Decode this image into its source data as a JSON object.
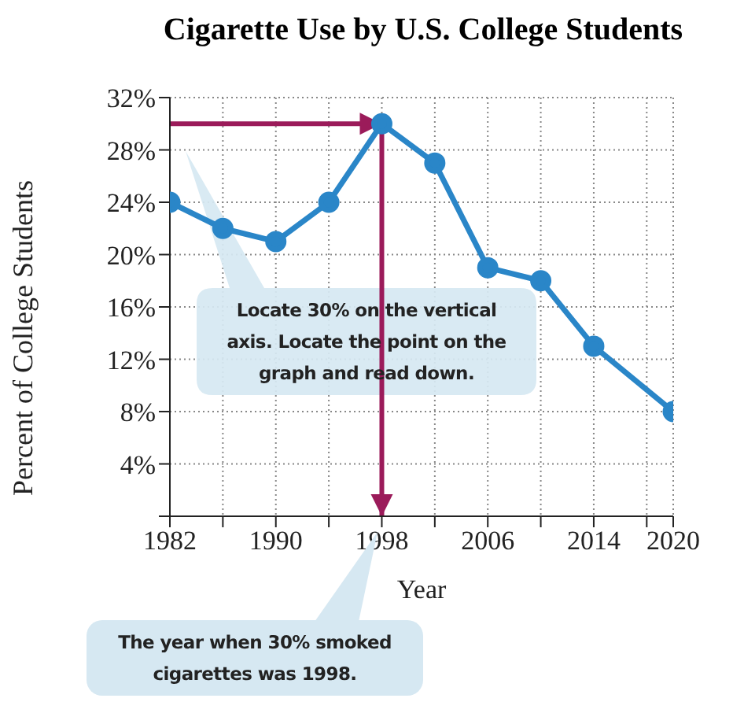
{
  "chart_data": {
    "type": "line",
    "title": "Cigarette Use by U.S. College Students",
    "xlabel": "Year",
    "ylabel": "Percent of College Students",
    "x": [
      1982,
      1986,
      1990,
      1994,
      1998,
      2002,
      2006,
      2010,
      2014,
      2020
    ],
    "series": [
      {
        "color": "#2a86c8",
        "values": [
          24,
          22,
          21,
          24,
          30,
          27,
          19,
          18,
          13,
          8
        ]
      }
    ],
    "xlim": [
      1982,
      2020
    ],
    "xticks": [
      1982,
      {
        "value": 1986,
        "label": null
      },
      1990,
      {
        "value": 1994,
        "label": null
      },
      1998,
      {
        "value": 2002,
        "label": null
      },
      2006,
      {
        "value": 2010,
        "label": null
      },
      2014,
      {
        "value": 2018,
        "label": null
      },
      2020
    ],
    "ylim": [
      0,
      32
    ],
    "yticks": [
      {
        "value": 0,
        "label": null
      },
      {
        "value": 4,
        "label": "4%"
      },
      {
        "value": 8,
        "label": "8%"
      },
      {
        "value": 12,
        "label": "12%"
      },
      {
        "value": 16,
        "label": "16%"
      },
      {
        "value": 20,
        "label": "20%"
      },
      {
        "value": 24,
        "label": "24%"
      },
      {
        "value": 28,
        "label": "28%"
      },
      {
        "value": 32,
        "label": "32%"
      }
    ],
    "grid": true,
    "marker": "circle",
    "line_style": "solid",
    "ref_lines": [
      {
        "axis": "y",
        "value": 30,
        "color": "#9b1b5a"
      },
      {
        "axis": "x",
        "value": 1998,
        "color": "#9b1b5a"
      }
    ],
    "annotations": [
      "Locate 30% on the vertical axis. Locate the point on the graph and read down.",
      "The year when 30% smoked cigarettes was 1998."
    ]
  }
}
